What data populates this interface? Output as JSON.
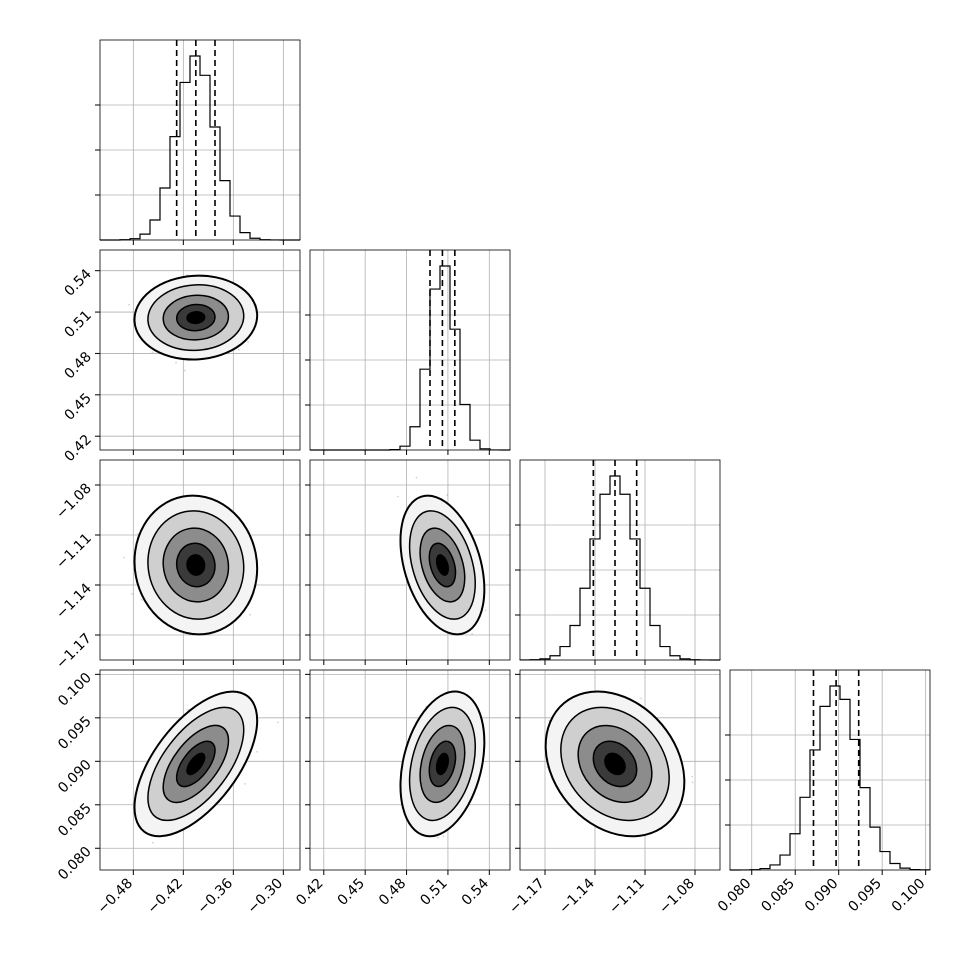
{
  "chart_data": {
    "type": "corner",
    "parameters": [
      {
        "median": -0.405,
        "q16": -0.428,
        "q84": -0.382,
        "sigma": 0.023,
        "range": [
          -0.52,
          -0.28
        ],
        "ticks": [
          -0.48,
          -0.42,
          -0.36,
          -0.3
        ],
        "tick_labels": [
          "−0.48",
          "−0.42",
          "−0.36",
          "−0.30"
        ]
      },
      {
        "median": 0.506,
        "q16": 0.497,
        "q84": 0.515,
        "sigma": 0.0095,
        "range": [
          0.41,
          0.555
        ],
        "ticks": [
          0.42,
          0.45,
          0.48,
          0.51,
          0.54
        ],
        "tick_labels": [
          "0.42",
          "0.45",
          "0.48",
          "0.51",
          "0.54"
        ]
      },
      {
        "median": -1.128,
        "q16": -1.141,
        "q84": -1.115,
        "sigma": 0.013,
        "range": [
          -1.185,
          -1.065
        ],
        "ticks": [
          -1.17,
          -1.14,
          -1.11,
          -1.08
        ],
        "tick_labels": [
          "−1.17",
          "−1.14",
          "−1.11",
          "−1.08"
        ]
      },
      {
        "median": 0.0897,
        "q16": 0.0871,
        "q84": 0.0923,
        "sigma": 0.0026,
        "range": [
          0.0775,
          0.1005
        ],
        "ticks": [
          0.08,
          0.085,
          0.09,
          0.095,
          0.1
        ],
        "tick_labels": [
          "0.080",
          "0.085",
          "0.090",
          "0.095",
          "0.100"
        ]
      }
    ],
    "correlations": {
      "1-0": 0.05,
      "2-0": -0.05,
      "2-1": -0.35,
      "3-0": 0.6,
      "3-1": 0.3,
      "3-2": -0.25
    },
    "histogram_bins": 20,
    "grid": true,
    "quantile_lines": "dashed"
  },
  "style": {
    "ink": "#000000",
    "grid": "#b0b0b0",
    "scatter": "#808080"
  }
}
